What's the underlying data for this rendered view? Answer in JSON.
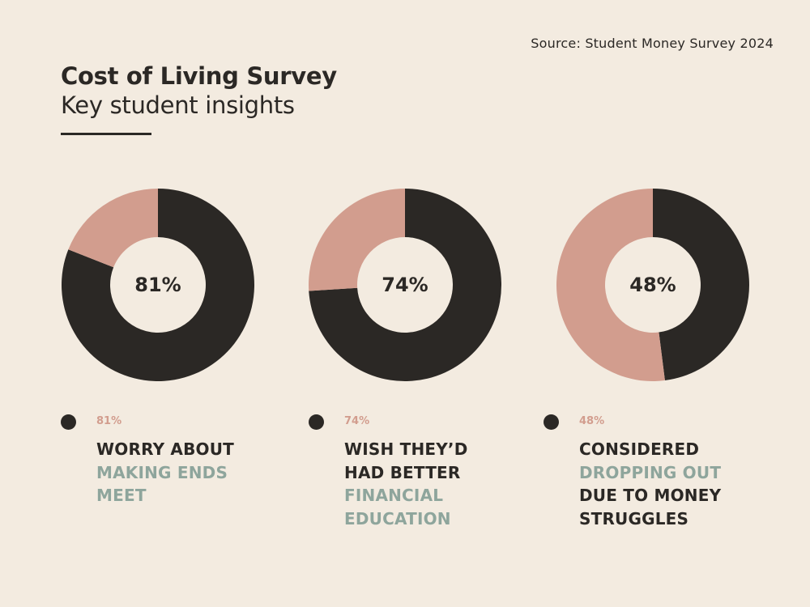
{
  "header": {
    "source": "Source: Student Money Survey 2024",
    "title": "Cost of Living Survey",
    "subtitle": "Key student insights"
  },
  "colors": {
    "background": "#f3ebe0",
    "primary": "#2b2825",
    "secondary": "#d29d8e",
    "accent": "#8ea59c"
  },
  "chart_data": [
    {
      "type": "pie",
      "value": 81,
      "center_label": "81%",
      "slices": [
        {
          "value": 81,
          "color": "#2b2825"
        },
        {
          "value": 19,
          "color": "#d29d8e"
        }
      ],
      "legend": {
        "pct": "81%",
        "lines": [
          {
            "text": "WORRY ABOUT",
            "color": "#2b2825"
          },
          {
            "text": "MAKING ENDS",
            "color": "#8ea59c"
          },
          {
            "text": "MEET",
            "color": "#8ea59c"
          }
        ]
      }
    },
    {
      "type": "pie",
      "value": 74,
      "center_label": "74%",
      "slices": [
        {
          "value": 74,
          "color": "#2b2825"
        },
        {
          "value": 26,
          "color": "#d29d8e"
        }
      ],
      "legend": {
        "pct": "74%",
        "lines": [
          {
            "text": "WISH THEY’D",
            "color": "#2b2825"
          },
          {
            "text": "HAD BETTER",
            "color": "#2b2825"
          },
          {
            "text": "FINANCIAL",
            "color": "#8ea59c"
          },
          {
            "text": "EDUCATION",
            "color": "#8ea59c"
          }
        ]
      }
    },
    {
      "type": "pie",
      "value": 48,
      "center_label": "48%",
      "slices": [
        {
          "value": 48,
          "color": "#2b2825"
        },
        {
          "value": 52,
          "color": "#d29d8e"
        }
      ],
      "legend": {
        "pct": "48%",
        "lines": [
          {
            "text": "CONSIDERED",
            "color": "#2b2825"
          },
          {
            "text": "DROPPING OUT",
            "color": "#8ea59c"
          },
          {
            "text": "DUE TO MONEY",
            "color": "#2b2825"
          },
          {
            "text": "STRUGGLES",
            "color": "#2b2825"
          }
        ]
      }
    }
  ]
}
